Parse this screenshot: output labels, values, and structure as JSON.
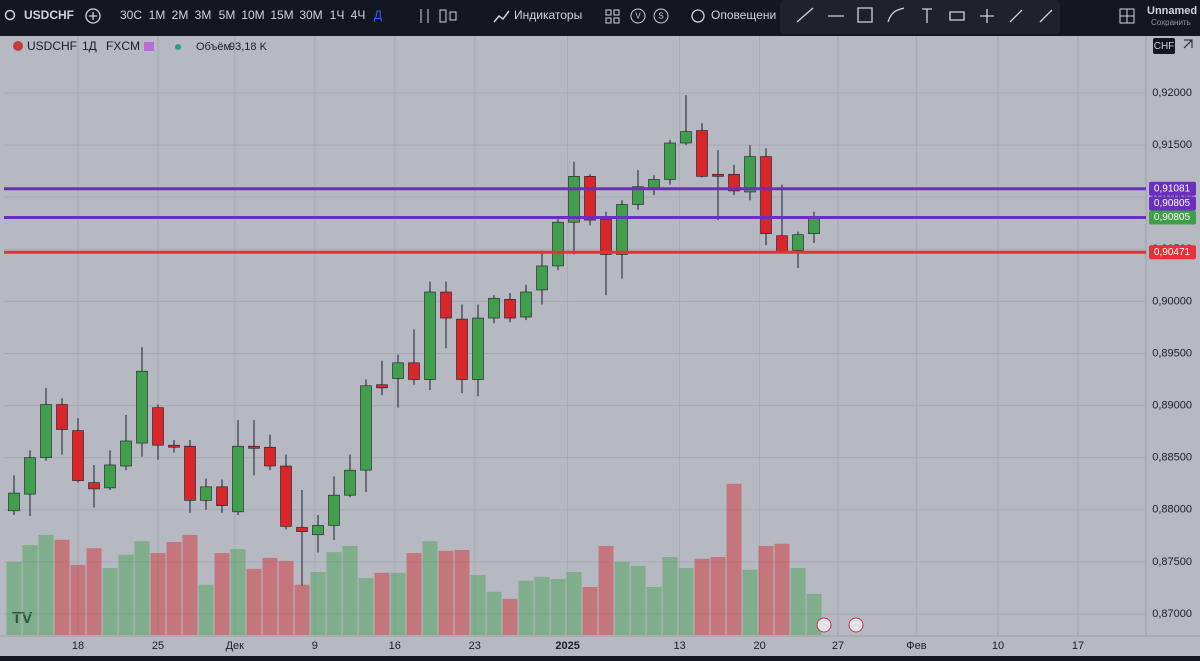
{
  "toolbar": {
    "symbol": "USDCHF",
    "intervals": [
      "30С",
      "1М",
      "2М",
      "3М",
      "5М",
      "10М",
      "15М",
      "30М",
      "1Ч",
      "4Ч",
      "Д"
    ],
    "indicators": "Индикаторы",
    "v_button": "V",
    "s_button": "S",
    "alerts": "Оповещени",
    "layout_name": "Unnamed",
    "save": "Сохранить"
  },
  "legend": {
    "symbol": "USDCHF",
    "interval": "1Д",
    "source": "FXCM",
    "volume_title": "Объём",
    "volume_value": "93,18 K"
  },
  "chart_data": {
    "type": "candlestick",
    "currency": "CHF",
    "ylim": [
      0.86798,
      0.92547
    ],
    "yticks": [
      {
        "value": 0.92,
        "label": "0,92000"
      },
      {
        "value": 0.915,
        "label": "0,91500"
      },
      {
        "value": 0.91,
        "label": "0,91000"
      },
      {
        "value": 0.905,
        "label": "0,90500"
      },
      {
        "value": 0.9,
        "label": "0,90000"
      },
      {
        "value": 0.895,
        "label": "0,89500"
      },
      {
        "value": 0.89,
        "label": "0,89000"
      },
      {
        "value": 0.885,
        "label": "0,88500"
      },
      {
        "value": 0.88,
        "label": "0,88000"
      },
      {
        "value": 0.875,
        "label": "0,87500"
      },
      {
        "value": 0.87,
        "label": "0,87000"
      }
    ],
    "xticks": [
      {
        "value": 4,
        "label": "18"
      },
      {
        "value": 9,
        "label": "25"
      },
      {
        "value": 13.8,
        "label": "Дек"
      },
      {
        "value": 18.8,
        "label": "9"
      },
      {
        "value": 23.8,
        "label": "16"
      },
      {
        "value": 28.8,
        "label": "23"
      },
      {
        "value": 34.6,
        "label": "2025"
      },
      {
        "value": 41.6,
        "label": "13"
      },
      {
        "value": 46.6,
        "label": "20"
      },
      {
        "value": 51.5,
        "label": "27"
      },
      {
        "value": 56.4,
        "label": "Фев"
      },
      {
        "value": 61.5,
        "label": "10"
      },
      {
        "value": 66.5,
        "label": "17"
      }
    ],
    "up_color": "#3f9f4a",
    "down_color": "#d8262a",
    "open": [
      0.8799,
      0.8815,
      0.885,
      0.8901,
      0.8876,
      0.8826,
      0.8821,
      0.8842,
      0.8864,
      0.8898,
      0.8862,
      0.8861,
      0.8809,
      0.8822,
      0.8798,
      0.8861,
      0.886,
      0.8842,
      0.8783,
      0.8776,
      0.8785,
      0.8814,
      0.8838,
      0.892,
      0.8926,
      0.8941,
      0.8925,
      0.9009,
      0.8983,
      0.8925,
      0.8984,
      0.9002,
      0.8985,
      0.9011,
      0.9034,
      0.9076,
      0.912,
      0.9079,
      0.9045,
      0.9093,
      0.9109,
      0.9117,
      0.9152,
      0.9164,
      0.9122,
      0.9122,
      0.9105,
      0.9139,
      0.9063,
      0.9049,
      0.9065
    ],
    "high": [
      0.8833,
      0.8857,
      0.8917,
      0.8907,
      0.8888,
      0.8843,
      0.8857,
      0.8891,
      0.8956,
      0.8901,
      0.8867,
      0.8867,
      0.883,
      0.8829,
      0.8886,
      0.8886,
      0.8872,
      0.8853,
      0.8819,
      0.8795,
      0.8832,
      0.8853,
      0.8925,
      0.8943,
      0.8949,
      0.8973,
      0.9019,
      0.9019,
      0.8997,
      0.8997,
      0.9006,
      0.9008,
      0.9016,
      0.9049,
      0.9081,
      0.9134,
      0.9122,
      0.9086,
      0.9097,
      0.9126,
      0.9121,
      0.9155,
      0.9198,
      0.9171,
      0.9145,
      0.9131,
      0.915,
      0.9147,
      0.9112,
      0.9067,
      0.9086
    ],
    "low": [
      0.8795,
      0.8794,
      0.8847,
      0.8853,
      0.8826,
      0.8802,
      0.8819,
      0.8838,
      0.8851,
      0.8848,
      0.8855,
      0.8797,
      0.88,
      0.8797,
      0.8795,
      0.8833,
      0.8838,
      0.8781,
      0.8727,
      0.8759,
      0.8771,
      0.8812,
      0.8817,
      0.891,
      0.8898,
      0.892,
      0.8915,
      0.8955,
      0.8912,
      0.8909,
      0.8979,
      0.898,
      0.8982,
      0.8997,
      0.903,
      0.9045,
      0.9073,
      0.9006,
      0.9022,
      0.9088,
      0.9102,
      0.9112,
      0.915,
      0.9119,
      0.9078,
      0.9102,
      0.9097,
      0.9054,
      0.9047,
      0.9032,
      0.9056
    ],
    "close": [
      0.8816,
      0.885,
      0.8901,
      0.8877,
      0.8828,
      0.882,
      0.8843,
      0.8866,
      0.8933,
      0.8862,
      0.886,
      0.8809,
      0.8822,
      0.8804,
      0.8861,
      0.8859,
      0.8842,
      0.8784,
      0.8779,
      0.8785,
      0.8814,
      0.8838,
      0.8919,
      0.8917,
      0.8941,
      0.8925,
      0.9009,
      0.8984,
      0.8925,
      0.8984,
      0.9003,
      0.8984,
      0.9009,
      0.9034,
      0.9076,
      0.912,
      0.9078,
      0.9045,
      0.9093,
      0.911,
      0.9117,
      0.9152,
      0.9163,
      0.912,
      0.912,
      0.9106,
      0.9139,
      0.9065,
      0.9048,
      0.9064,
      0.90805
    ],
    "volume": [
      166,
      204,
      227,
      216,
      159,
      197,
      152,
      182,
      213,
      186,
      211,
      227,
      114,
      186,
      195,
      150,
      175,
      168,
      114,
      143,
      188,
      202,
      129,
      141,
      141,
      186,
      213,
      191,
      193,
      136,
      98,
      82,
      123,
      132,
      127,
      143,
      109,
      202,
      166,
      157,
      109,
      177,
      152,
      173,
      177,
      343,
      148,
      202,
      207,
      152,
      93.18
    ],
    "volume_lim": [
      0,
      447
    ],
    "hlines": [
      {
        "value": 0.91081,
        "label": "0,91081",
        "color": "#6a2fc0"
      },
      {
        "value": 0.90805,
        "label": "0,90805",
        "color": "#6a2fc0"
      },
      {
        "value": 0.90471,
        "label": "0,90471",
        "color": "#e8303a"
      }
    ],
    "last_price": {
      "value": 0.90805,
      "label": "0,90805"
    },
    "grid": true
  }
}
